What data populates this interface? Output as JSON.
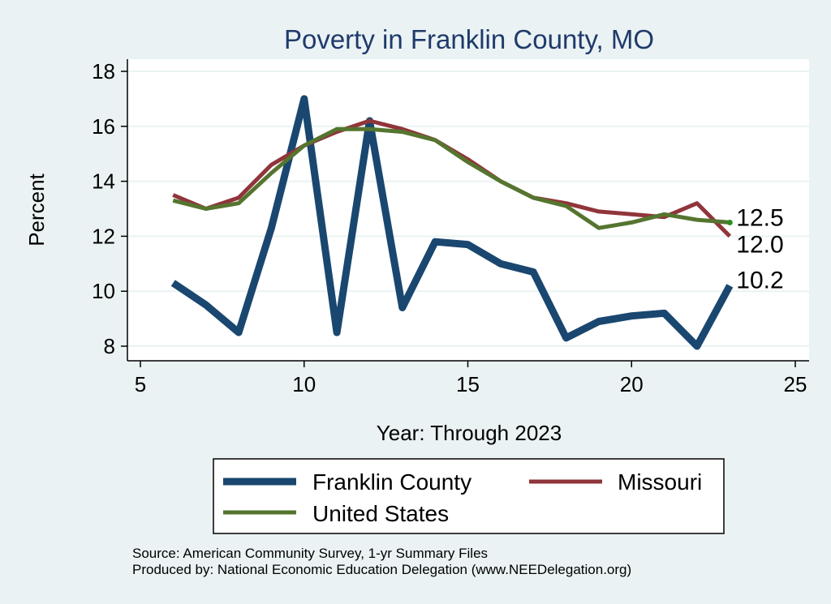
{
  "chart_data": {
    "type": "line",
    "title": "Poverty in Franklin County, MO",
    "xlabel": "Year: Through 2023",
    "ylabel": "Percent",
    "xlim": [
      5,
      25
    ],
    "ylim": [
      7.5,
      18.5
    ],
    "xticks": [
      5,
      10,
      15,
      20,
      25
    ],
    "yticks": [
      8,
      10,
      12,
      14,
      16,
      18
    ],
    "grid": true,
    "legend_position": "bottom",
    "series": [
      {
        "name": "Franklin County",
        "color": "#1a476f",
        "x": [
          6,
          7,
          8,
          9,
          10,
          11,
          12,
          13,
          14,
          15,
          16,
          17,
          18,
          19,
          20,
          21,
          22,
          23
        ],
        "values": [
          10.3,
          9.5,
          8.5,
          12.3,
          17.0,
          8.5,
          16.2,
          9.4,
          11.8,
          11.7,
          11.0,
          10.7,
          8.3,
          8.9,
          9.1,
          9.2,
          8.0,
          10.2
        ],
        "end_label": "10.2"
      },
      {
        "name": "Missouri",
        "color": "#90353b",
        "x": [
          6,
          7,
          8,
          9,
          10,
          11,
          12,
          13,
          14,
          15,
          16,
          17,
          18,
          19,
          20,
          21,
          22,
          23
        ],
        "values": [
          13.5,
          13.0,
          13.4,
          14.6,
          15.3,
          15.8,
          16.2,
          15.9,
          15.5,
          14.8,
          14.0,
          13.4,
          13.2,
          12.9,
          12.8,
          12.7,
          13.2,
          12.0
        ],
        "end_label": "12.0"
      },
      {
        "name": "United States",
        "color": "#55752f",
        "x": [
          6,
          7,
          8,
          9,
          10,
          11,
          12,
          13,
          14,
          15,
          16,
          17,
          18,
          19,
          20,
          21,
          22,
          23
        ],
        "values": [
          13.3,
          13.0,
          13.2,
          14.3,
          15.3,
          15.9,
          15.9,
          15.8,
          15.5,
          14.7,
          14.0,
          13.4,
          13.1,
          12.3,
          12.5,
          12.8,
          12.6,
          12.5
        ],
        "end_label": "12.5"
      }
    ]
  },
  "notes": {
    "source": "Source: American Community Survey, 1-yr Summary Files",
    "produced_by": "Produced by: National Economic Education Delegation (www.NEEDelegation.org)"
  }
}
